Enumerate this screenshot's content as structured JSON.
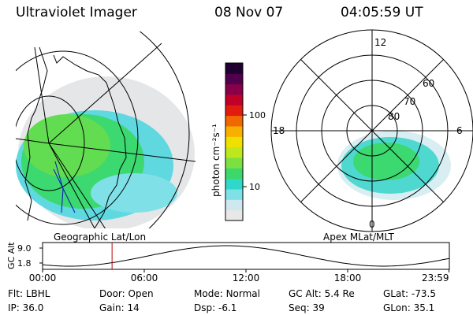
{
  "header": {
    "title": "Ultraviolet Imager",
    "date": "08 Nov 07",
    "time": "04:05:59 UT"
  },
  "panels": {
    "geo_label": "Geographic Lat/Lon",
    "apex_label": "Apex MLat/MLT",
    "mlt_labels": [
      "12",
      "18",
      "6",
      "0"
    ],
    "lat_labels": [
      "60",
      "70",
      "80"
    ]
  },
  "colorbar": {
    "unit_label": "photon cm⁻²s⁻¹",
    "tick_labels": [
      "100",
      "10"
    ],
    "colors": [
      "#e8e8e8",
      "#cfe8f0",
      "#7fe0e8",
      "#2fd8c8",
      "#3cd86a",
      "#7ce040",
      "#bde81e",
      "#f0e000",
      "#f8b000",
      "#f06800",
      "#e01c10",
      "#c00028",
      "#8a0048",
      "#50004c",
      "#200030"
    ]
  },
  "orbit": {
    "axis_label": "GC Alt",
    "y_ticks": [
      "9.0",
      "1.8"
    ],
    "x_ticks": [
      "00:00",
      "06:00",
      "12:00",
      "18:00",
      "23:59"
    ],
    "current_time_hours": 4.1
  },
  "footer": {
    "row1": [
      {
        "label": "Flt:",
        "value": "LBHL"
      },
      {
        "label": "Door:",
        "value": "Open"
      },
      {
        "label": "Mode:",
        "value": "Normal"
      },
      {
        "label": "GC Alt:",
        "value": "5.4 Re"
      },
      {
        "label": "GLat:",
        "value": "-73.5"
      }
    ],
    "row2": [
      {
        "label": "IP:",
        "value": "36.0"
      },
      {
        "label": "Gain:",
        "value": "14"
      },
      {
        "label": "Dsp:",
        "value": "-6.1"
      },
      {
        "label": "Seq:",
        "value": "39"
      },
      {
        "label": "GLon:",
        "value": "35.1"
      }
    ]
  }
}
